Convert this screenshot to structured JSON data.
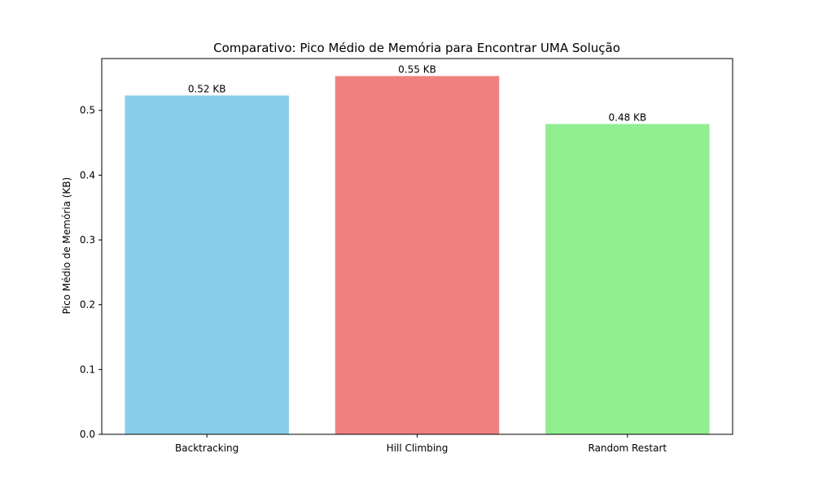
{
  "chart_data": {
    "type": "bar",
    "title": "Comparativo: Pico Médio de Memória para Encontrar UMA Solução",
    "xlabel": "",
    "ylabel": "Pico Médio de Memória (KB)",
    "categories": [
      "Backtracking",
      "Hill Climbing",
      "Random Restart"
    ],
    "values": [
      0.523,
      0.553,
      0.479
    ],
    "data_labels": [
      "0.52 KB",
      "0.55 KB",
      "0.48 KB"
    ],
    "colors": [
      "#87ceeb",
      "#f08080",
      "#90ee90"
    ],
    "ylim": [
      0,
      0.58
    ],
    "yticks": [
      0.0,
      0.1,
      0.2,
      0.3,
      0.4,
      0.5
    ],
    "ytick_labels": [
      "0.0",
      "0.1",
      "0.2",
      "0.3",
      "0.4",
      "0.5"
    ],
    "grid": false,
    "legend": "none"
  }
}
